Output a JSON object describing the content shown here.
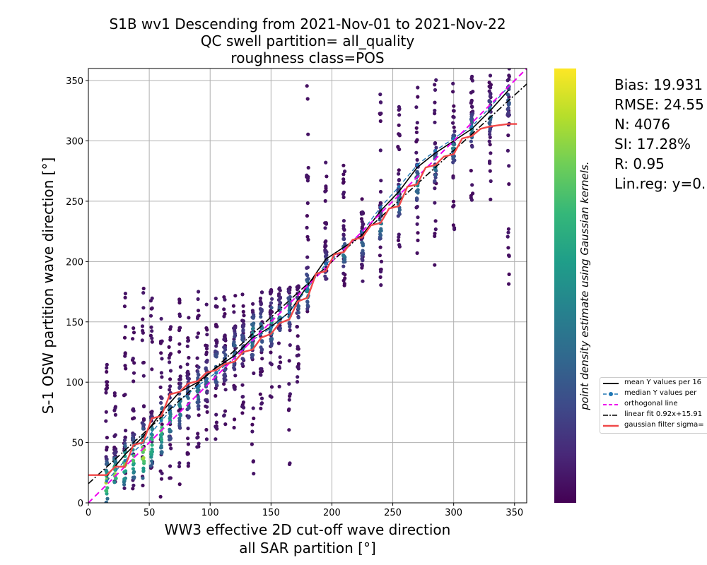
{
  "title": {
    "line1": "S1B wv1 Descending from 2021-Nov-01 to 2021-Nov-22",
    "line2": "QC swell partition= all_quality",
    "line3": "roughness class=POS"
  },
  "stats": {
    "bias": "Bias: 19.931",
    "rmse": "RMSE: 24.55",
    "n": "N: 4076",
    "si": "SI: 17.28%",
    "r": "R: 0.95",
    "linreg": "Lin.reg: y=0."
  },
  "legend": {
    "mean": "mean Y values per 16",
    "median": "median Y values per",
    "orthogonal": "orthogonal line",
    "linfit": "linear fit 0.92x+15.91",
    "gaussian": "gaussian filter sigma="
  },
  "colors": {
    "mean": "#000000",
    "median": "#1f77b4",
    "orthogonal": "#ee00ee",
    "linfit": "#000000",
    "gaussian": "#f04848",
    "grid": "#b0b0b0"
  },
  "chart_data": {
    "type": "scatter",
    "xlabel_line1": "WW3 effective 2D cut-off wave direction",
    "xlabel_line2": "all SAR partition [°]",
    "ylabel": "S-1 OSW partition wave direction [°]",
    "colorbar_label": "point density estimate using Gaussian kernels.",
    "colormap": "viridis",
    "xlim": [
      0,
      360
    ],
    "ylim": [
      0,
      360
    ],
    "grid": true,
    "legend_position": "right, outside plot",
    "xticks": [
      0,
      50,
      100,
      150,
      200,
      250,
      300,
      350
    ],
    "yticks": [
      0,
      50,
      100,
      150,
      200,
      250,
      300,
      350
    ],
    "scatter_columns": [
      {
        "x": 15,
        "ymin": 0,
        "ymax": 115,
        "core": [
          0,
          40
        ],
        "peak": 0.95
      },
      {
        "x": 22,
        "ymin": 5,
        "ymax": 110,
        "core": [
          10,
          45
        ],
        "peak": 0.85
      },
      {
        "x": 30,
        "ymin": 5,
        "ymax": 175,
        "core": [
          15,
          55
        ],
        "peak": 0.9
      },
      {
        "x": 37,
        "ymin": 10,
        "ymax": 150,
        "core": [
          20,
          60
        ],
        "peak": 0.85
      },
      {
        "x": 45,
        "ymin": 10,
        "ymax": 178,
        "core": [
          20,
          70
        ],
        "peak": 0.95
      },
      {
        "x": 52,
        "ymin": 15,
        "ymax": 180,
        "core": [
          30,
          75
        ],
        "peak": 0.85
      },
      {
        "x": 60,
        "ymin": 5,
        "ymax": 180,
        "core": [
          40,
          90
        ],
        "peak": 0.8
      },
      {
        "x": 67,
        "ymin": 10,
        "ymax": 150,
        "core": [
          50,
          95
        ],
        "peak": 0.55
      },
      {
        "x": 75,
        "ymin": 15,
        "ymax": 180,
        "core": [
          60,
          105
        ],
        "peak": 0.5
      },
      {
        "x": 82,
        "ymin": 30,
        "ymax": 160,
        "core": [
          70,
          110
        ],
        "peak": 0.4
      },
      {
        "x": 90,
        "ymin": 25,
        "ymax": 180,
        "core": [
          75,
          120
        ],
        "peak": 0.45
      },
      {
        "x": 97,
        "ymin": 50,
        "ymax": 165,
        "core": [
          85,
          125
        ],
        "peak": 0.35
      },
      {
        "x": 105,
        "ymin": 45,
        "ymax": 180,
        "core": [
          95,
          135
        ],
        "peak": 0.45
      },
      {
        "x": 112,
        "ymin": 60,
        "ymax": 175,
        "core": [
          100,
          140
        ],
        "peak": 0.35
      },
      {
        "x": 120,
        "ymin": 60,
        "ymax": 180,
        "core": [
          110,
          150
        ],
        "peak": 0.4
      },
      {
        "x": 127,
        "ymin": 70,
        "ymax": 175,
        "core": [
          115,
          155
        ],
        "peak": 0.35
      },
      {
        "x": 135,
        "ymin": 20,
        "ymax": 180,
        "core": [
          120,
          165
        ],
        "peak": 0.55
      },
      {
        "x": 142,
        "ymin": 70,
        "ymax": 180,
        "core": [
          125,
          170
        ],
        "peak": 0.45
      },
      {
        "x": 150,
        "ymin": 80,
        "ymax": 180,
        "core": [
          130,
          175
        ],
        "peak": 0.55
      },
      {
        "x": 157,
        "ymin": 90,
        "ymax": 180,
        "core": [
          140,
          175
        ],
        "peak": 0.45
      },
      {
        "x": 165,
        "ymin": 15,
        "ymax": 180,
        "core": [
          145,
          180
        ],
        "peak": 0.5
      },
      {
        "x": 172,
        "ymin": 100,
        "ymax": 180,
        "core": [
          150,
          180
        ],
        "peak": 0.35
      },
      {
        "x": 180,
        "ymin": 130,
        "ymax": 350,
        "core": [
          160,
          200
        ],
        "peak": 0.5
      },
      {
        "x": 195,
        "ymin": 175,
        "ymax": 285,
        "core": [
          185,
          215
        ],
        "peak": 0.3
      },
      {
        "x": 210,
        "ymin": 180,
        "ymax": 280,
        "core": [
          195,
          225
        ],
        "peak": 0.45
      },
      {
        "x": 225,
        "ymin": 180,
        "ymax": 280,
        "core": [
          200,
          235
        ],
        "peak": 0.35
      },
      {
        "x": 240,
        "ymin": 180,
        "ymax": 345,
        "core": [
          215,
          250
        ],
        "peak": 0.45
      },
      {
        "x": 255,
        "ymin": 200,
        "ymax": 330,
        "core": [
          235,
          270
        ],
        "peak": 0.45
      },
      {
        "x": 270,
        "ymin": 200,
        "ymax": 345,
        "core": [
          250,
          285
        ],
        "peak": 0.5
      },
      {
        "x": 285,
        "ymin": 190,
        "ymax": 355,
        "core": [
          265,
          300
        ],
        "peak": 0.45
      },
      {
        "x": 300,
        "ymin": 220,
        "ymax": 355,
        "core": [
          280,
          315
        ],
        "peak": 0.45
      },
      {
        "x": 315,
        "ymin": 250,
        "ymax": 355,
        "core": [
          295,
          330
        ],
        "peak": 0.45
      },
      {
        "x": 330,
        "ymin": 250,
        "ymax": 355,
        "core": [
          305,
          345
        ],
        "peak": 0.4
      },
      {
        "x": 345,
        "ymin": 180,
        "ymax": 360,
        "core": [
          320,
          355
        ],
        "peak": 0.35
      }
    ],
    "series": [
      {
        "name": "mean Y values per 16",
        "style": "solid",
        "color": "#000000",
        "x": [
          15,
          30,
          45,
          60,
          75,
          90,
          105,
          120,
          135,
          150,
          165,
          180,
          195,
          210,
          225,
          240,
          255,
          270,
          285,
          300,
          315,
          330,
          345
        ],
        "y": [
          22,
          40,
          55,
          75,
          92,
          100,
          112,
          122,
          137,
          146,
          158,
          180,
          202,
          212,
          222,
          242,
          258,
          278,
          290,
          300,
          310,
          325,
          342
        ]
      },
      {
        "name": "median Y values per",
        "style": "dashed-markers",
        "color": "#1f77b4",
        "x": [
          15,
          30,
          45,
          60,
          75,
          90,
          105,
          120,
          135,
          150,
          165,
          180,
          195,
          210,
          225,
          240,
          255,
          270,
          285,
          300,
          315,
          330,
          345
        ],
        "y": [
          18,
          35,
          50,
          68,
          85,
          97,
          108,
          120,
          135,
          145,
          158,
          178,
          198,
          210,
          225,
          245,
          262,
          280,
          292,
          302,
          312,
          328,
          345
        ]
      },
      {
        "name": "orthogonal line",
        "style": "dashed",
        "color": "#ee00ee",
        "x": [
          0,
          360
        ],
        "y": [
          0,
          360
        ]
      },
      {
        "name": "linear fit 0.92x+15.91",
        "style": "dashdot",
        "color": "#000000",
        "x": [
          0,
          360
        ],
        "y": [
          15.91,
          347.11
        ]
      },
      {
        "name": "gaussian filter sigma=",
        "style": "solid",
        "color": "#f04848",
        "x": [
          0,
          7,
          15,
          22,
          30,
          37,
          45,
          52,
          60,
          67,
          75,
          82,
          90,
          97,
          105,
          112,
          120,
          127,
          135,
          142,
          150,
          157,
          165,
          172,
          180,
          187,
          195,
          202,
          210,
          217,
          225,
          232,
          240,
          247,
          255,
          262,
          270,
          277,
          285,
          292,
          300,
          307,
          315,
          322,
          330,
          337,
          345,
          352
        ],
        "y": [
          23,
          23,
          23,
          30,
          30,
          48,
          50,
          70,
          72,
          90,
          92,
          99,
          101,
          108,
          110,
          115,
          117,
          125,
          127,
          137,
          140,
          149,
          152,
          167,
          170,
          190,
          192,
          206,
          208,
          218,
          220,
          230,
          232,
          244,
          246,
          262,
          264,
          278,
          280,
          287,
          289,
          302,
          304,
          310,
          312,
          313,
          314,
          314
        ]
      }
    ]
  }
}
